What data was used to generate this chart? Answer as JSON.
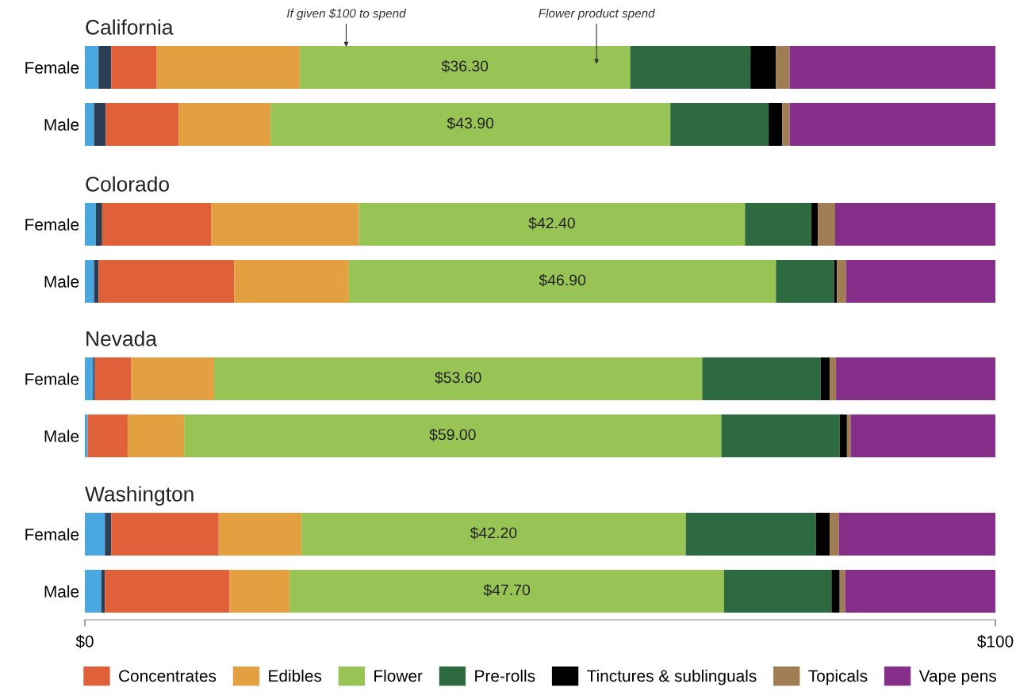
{
  "chart_data": [
    {
      "type": "bar",
      "orientation": "horizontal",
      "stacked": true,
      "title": "California",
      "categories": [
        "Female",
        "Male"
      ],
      "xlim": [
        0,
        100
      ],
      "tick_labels": "y",
      "legend": false,
      "annotations": [
        "If given $100 to spend",
        "Flower product spend"
      ],
      "series": [
        {
          "color": "#4aa8e0",
          "values": [
            1.5,
            1.0
          ]
        },
        {
          "color": "#2c3e55",
          "values": [
            1.4,
            1.3
          ]
        },
        {
          "color": "#e0603a",
          "values": [
            5.0,
            8.0
          ]
        },
        {
          "color": "#e3a041",
          "values": [
            15.7,
            10.1
          ]
        },
        {
          "color": "#98c455",
          "values": [
            36.3,
            43.9
          ],
          "value_labels": [
            "$36.30",
            "$43.90"
          ]
        },
        {
          "color": "#2d6a3f",
          "values": [
            13.2,
            10.8
          ]
        },
        {
          "color": "#000000",
          "values": [
            2.8,
            1.5
          ]
        },
        {
          "color": "#a07d52",
          "values": [
            1.5,
            0.8
          ]
        },
        {
          "color": "#852e8a",
          "values": [
            22.6,
            22.6
          ]
        }
      ]
    },
    {
      "type": "bar",
      "orientation": "horizontal",
      "stacked": true,
      "title": "Colorado",
      "categories": [
        "Female",
        "Male"
      ],
      "xlim": [
        0,
        100
      ],
      "tick_labels": "y",
      "legend": false,
      "series": [
        {
          "color": "#4aa8e0",
          "values": [
            1.2,
            1.0
          ]
        },
        {
          "color": "#2c3e55",
          "values": [
            0.7,
            0.5
          ]
        },
        {
          "color": "#e0603a",
          "values": [
            12.0,
            14.9
          ]
        },
        {
          "color": "#e3a041",
          "values": [
            16.2,
            12.6
          ]
        },
        {
          "color": "#98c455",
          "values": [
            42.4,
            46.9
          ],
          "value_labels": [
            "$42.40",
            "$46.90"
          ]
        },
        {
          "color": "#2d6a3f",
          "values": [
            7.3,
            6.4
          ]
        },
        {
          "color": "#000000",
          "values": [
            0.7,
            0.3
          ]
        },
        {
          "color": "#a07d52",
          "values": [
            1.9,
            1.0
          ]
        },
        {
          "color": "#852e8a",
          "values": [
            17.6,
            16.4
          ]
        }
      ]
    },
    {
      "type": "bar",
      "orientation": "horizontal",
      "stacked": true,
      "title": "Nevada",
      "categories": [
        "Female",
        "Male"
      ],
      "xlim": [
        0,
        100
      ],
      "tick_labels": "y",
      "legend": false,
      "series": [
        {
          "color": "#4aa8e0",
          "values": [
            0.9,
            0.3
          ]
        },
        {
          "color": "#2c3e55",
          "values": [
            0.2,
            0
          ]
        },
        {
          "color": "#e0603a",
          "values": [
            4.0,
            4.4
          ]
        },
        {
          "color": "#e3a041",
          "values": [
            9.1,
            6.2
          ]
        },
        {
          "color": "#98c455",
          "values": [
            53.6,
            59.0
          ],
          "value_labels": [
            "$53.60",
            "$59.00"
          ]
        },
        {
          "color": "#2d6a3f",
          "values": [
            13.0,
            13.0
          ]
        },
        {
          "color": "#000000",
          "values": [
            1.0,
            0.8
          ]
        },
        {
          "color": "#a07d52",
          "values": [
            0.7,
            0.4
          ]
        },
        {
          "color": "#852e8a",
          "values": [
            17.5,
            15.9
          ]
        }
      ]
    },
    {
      "type": "bar",
      "orientation": "horizontal",
      "stacked": true,
      "title": "Washington",
      "categories": [
        "Female",
        "Male"
      ],
      "xlim": [
        0,
        100
      ],
      "xticks": [
        {
          "value": 0,
          "label": "$0"
        },
        {
          "value": 100,
          "label": "$100"
        }
      ],
      "legend": "bottom",
      "series": [
        {
          "color": "#4aa8e0",
          "values": [
            2.2,
            1.8
          ]
        },
        {
          "color": "#2c3e55",
          "values": [
            0.7,
            0.4
          ]
        },
        {
          "name": "Concentrates",
          "color": "#e0603a",
          "values": [
            11.8,
            13.7
          ]
        },
        {
          "name": "Edibles",
          "color": "#e3a041",
          "values": [
            9.1,
            6.6
          ]
        },
        {
          "name": "Flower",
          "color": "#98c455",
          "values": [
            42.2,
            47.7
          ],
          "value_labels": [
            "$42.20",
            "$47.70"
          ]
        },
        {
          "name": "Pre-rolls",
          "color": "#2d6a3f",
          "values": [
            14.3,
            11.8
          ]
        },
        {
          "name": "Tinctures & sublinguals",
          "color": "#000000",
          "values": [
            1.5,
            0.9
          ]
        },
        {
          "name": "Topicals",
          "color": "#a07d52",
          "values": [
            1.0,
            0.6
          ]
        },
        {
          "name": "Vape pens",
          "color": "#852e8a",
          "values": [
            17.2,
            16.5
          ]
        }
      ]
    }
  ]
}
